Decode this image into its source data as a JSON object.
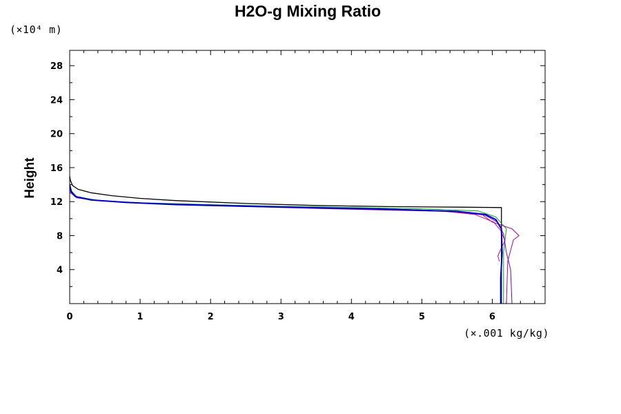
{
  "chart_data": {
    "type": "line",
    "title": "H2O-g Mixing Ratio",
    "ylabel": "Height",
    "yunit": "(×10⁴ m)",
    "xunit": "(×.001 kg/kg)",
    "xlim": [
      0,
      6.75
    ],
    "ylim": [
      0,
      29.8
    ],
    "x_ticks": [
      0,
      1,
      2,
      3,
      4,
      5,
      6
    ],
    "y_ticks": [
      4,
      8,
      12,
      16,
      20,
      24,
      28
    ],
    "x_tick_labels": [
      "0",
      "1",
      "2",
      "3",
      "4",
      "5",
      "6"
    ],
    "y_tick_labels": [
      "4",
      "8",
      "12",
      "16",
      "20",
      "24",
      "28"
    ],
    "x_minor_step": 0.2,
    "y_minor_step": 2,
    "grid": false,
    "legend": "none",
    "series": [
      {
        "color": "#000000",
        "width": 1.3,
        "points": [
          [
            6.13,
            0
          ],
          [
            6.13,
            11.3
          ],
          [
            5.5,
            11.35
          ],
          [
            4.5,
            11.42
          ],
          [
            3.5,
            11.55
          ],
          [
            2.5,
            11.78
          ],
          [
            1.5,
            12.12
          ],
          [
            1.0,
            12.38
          ],
          [
            0.6,
            12.7
          ],
          [
            0.3,
            13.05
          ],
          [
            0.12,
            13.45
          ],
          [
            0.04,
            13.9
          ],
          [
            0.01,
            14.5
          ],
          [
            0.0,
            15.0
          ]
        ]
      },
      {
        "color": "#00aa00",
        "width": 1,
        "points": [
          [
            6.16,
            0
          ],
          [
            6.16,
            6
          ],
          [
            6.2,
            8.8
          ],
          [
            6.05,
            10.2
          ],
          [
            5.8,
            10.9
          ],
          [
            5.0,
            11.15
          ],
          [
            4.0,
            11.3
          ],
          [
            3.0,
            11.45
          ],
          [
            2.0,
            11.65
          ],
          [
            1.0,
            11.88
          ],
          [
            0.4,
            12.15
          ],
          [
            0.1,
            12.6
          ],
          [
            0.03,
            13.2
          ],
          [
            0.0,
            14.1
          ]
        ]
      },
      {
        "color": "#aa00aa",
        "width": 1,
        "points": [
          [
            6.2,
            0
          ],
          [
            6.22,
            5
          ],
          [
            6.3,
            7.5
          ],
          [
            6.38,
            8
          ],
          [
            6.28,
            8.8
          ],
          [
            6.0,
            9.6
          ],
          [
            5.9,
            10.2
          ],
          [
            5.85,
            10.55
          ],
          [
            5.4,
            10.85
          ],
          [
            4.5,
            11.0
          ],
          [
            3.5,
            11.2
          ],
          [
            3.0,
            11.3
          ],
          [
            2.0,
            11.55
          ],
          [
            1.0,
            11.82
          ],
          [
            0.4,
            12.1
          ],
          [
            0.1,
            12.45
          ],
          [
            0.02,
            13.0
          ],
          [
            0.0,
            13.6
          ]
        ]
      },
      {
        "color": "#cc0099",
        "width": 1,
        "points": [
          [
            6.1,
            5
          ],
          [
            6.08,
            5.6
          ],
          [
            6.12,
            6.4
          ],
          [
            6.18,
            7.4
          ],
          [
            6.12,
            8.6
          ],
          [
            6.02,
            9.6
          ],
          [
            5.75,
            10.5
          ],
          [
            5.2,
            10.95
          ],
          [
            4.4,
            11.15
          ],
          [
            3.4,
            11.3
          ],
          [
            2.4,
            11.5
          ],
          [
            1.4,
            11.72
          ],
          [
            0.7,
            11.95
          ],
          [
            0.3,
            12.2
          ],
          [
            0.08,
            12.6
          ],
          [
            0.0,
            13.1
          ]
        ]
      },
      {
        "color": "#7700cc",
        "width": 1,
        "points": [
          [
            6.28,
            0
          ],
          [
            6.26,
            4
          ],
          [
            6.2,
            6
          ],
          [
            6.16,
            8.2
          ],
          [
            6.07,
            9.6
          ],
          [
            5.9,
            10.4
          ],
          [
            5.4,
            10.9
          ],
          [
            4.5,
            11.15
          ],
          [
            3.5,
            11.3
          ],
          [
            2.5,
            11.5
          ],
          [
            1.5,
            11.72
          ],
          [
            0.8,
            11.92
          ],
          [
            0.3,
            12.2
          ],
          [
            0.08,
            12.6
          ],
          [
            0.02,
            13.1
          ],
          [
            0.0,
            13.7
          ]
        ]
      },
      {
        "color": "#0000cc",
        "width": 2,
        "points": [
          [
            6.12,
            0
          ],
          [
            6.12,
            3
          ],
          [
            6.14,
            6
          ],
          [
            6.13,
            8.8
          ],
          [
            6.05,
            9.9
          ],
          [
            5.9,
            10.5
          ],
          [
            5.5,
            10.85
          ],
          [
            4.5,
            11.1
          ],
          [
            3.5,
            11.28
          ],
          [
            2.5,
            11.45
          ],
          [
            1.5,
            11.65
          ],
          [
            0.8,
            11.9
          ],
          [
            0.3,
            12.2
          ],
          [
            0.08,
            12.6
          ],
          [
            0.02,
            13.2
          ],
          [
            0.0,
            14.0
          ]
        ]
      }
    ]
  }
}
